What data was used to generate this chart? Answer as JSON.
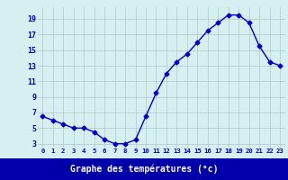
{
  "hours": [
    0,
    1,
    2,
    3,
    4,
    5,
    6,
    7,
    8,
    9,
    10,
    11,
    12,
    13,
    14,
    15,
    16,
    17,
    18,
    19,
    20,
    21,
    22,
    23
  ],
  "temperatures": [
    6.5,
    6.0,
    5.5,
    5.0,
    5.0,
    4.5,
    3.5,
    3.0,
    3.0,
    3.5,
    6.5,
    9.5,
    12.0,
    13.5,
    14.5,
    16.0,
    17.5,
    18.5,
    19.5,
    19.5,
    18.5,
    15.5,
    13.5,
    13.0
  ],
  "yticks": [
    3,
    5,
    7,
    9,
    11,
    13,
    15,
    17,
    19
  ],
  "ymin": 2.5,
  "ymax": 20.5,
  "xmin": -0.5,
  "xmax": 23.5,
  "line_color": "#0000cc",
  "marker": "D",
  "marker_size": 2.5,
  "bg_color": "#d4f0f0",
  "grid_color": "#b0c8c8",
  "xlabel": "Graphe des températures (°c)",
  "xlabel_color": "#0000cc",
  "axis_label_color": "#0000cc",
  "bottom_bar_color": "#0000aa",
  "bottom_bar_text_color": "#ffffff"
}
